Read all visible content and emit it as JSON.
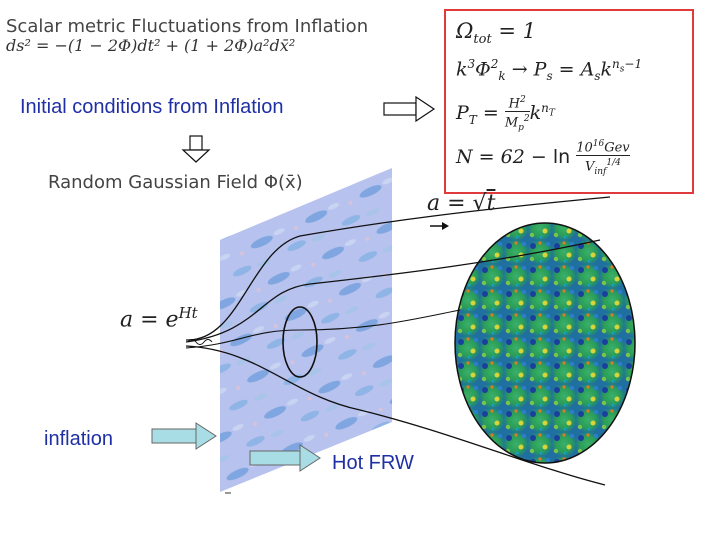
{
  "header": {
    "title": "Scalar metric Fluctuations from Inflation",
    "metric": "ds² = −(1 − 2Φ)dt² + (1 + 2Φ)a²dx̄²"
  },
  "labels": {
    "initial_conditions": "Initial conditions from Inflation",
    "random_field": "Random Gaussian Field Φ(x̄)",
    "inflation": "inflation",
    "hot_frw": "Hot FRW"
  },
  "equations_box": {
    "line1": "Ωtot = 1",
    "line2": "k³Φ²k → Ps = Ask^(ns−1)",
    "line3": "PT = (H²/Mp²) k^nT",
    "line4": "N = 62 − ln (10¹⁶ Gev / Vinf^(1/4))"
  },
  "math_labels": {
    "sqrt_t": "a = √t",
    "exp_ht": "a = e^Ht"
  },
  "colors": {
    "label_blue": "#1f2fa5",
    "box_border": "#e03a3a",
    "arrow_fill": "#a9dde6"
  }
}
